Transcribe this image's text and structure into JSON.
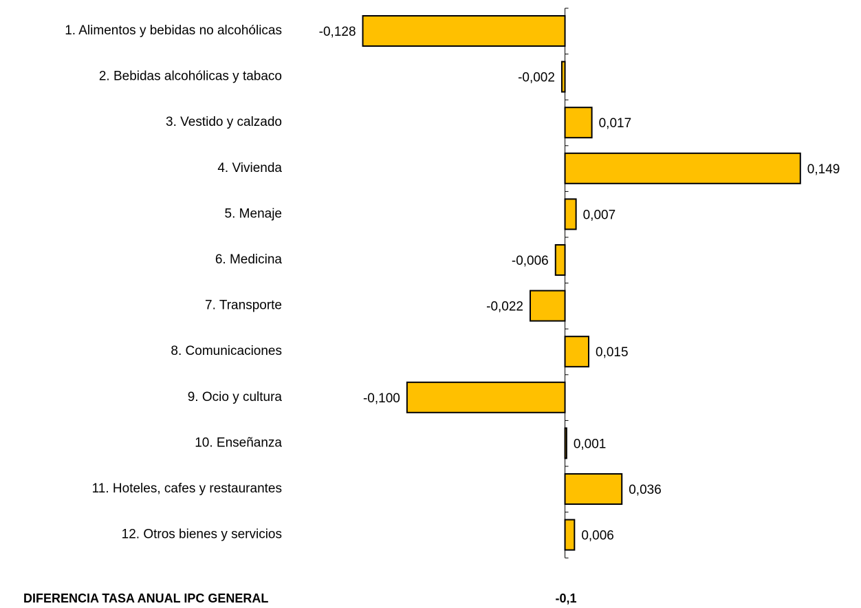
{
  "chart_data": {
    "type": "bar",
    "orientation": "horizontal",
    "categories": [
      "1. Alimentos y bebidas no alcohólicas",
      "2. Bebidas alcohólicas y tabaco",
      "3. Vestido y calzado",
      "4. Vivienda",
      "5. Menaje",
      "6. Medicina",
      "7. Transporte",
      "8. Comunicaciones",
      "9. Ocio y cultura",
      "10. Enseñanza",
      "11. Hoteles, cafes y restaurantes",
      "12. Otros bienes y servicios"
    ],
    "values": [
      -0.128,
      -0.002,
      0.017,
      0.149,
      0.007,
      -0.006,
      -0.022,
      0.015,
      -0.1,
      0.001,
      0.036,
      0.006
    ],
    "value_labels": [
      "-0,128",
      "-0,002",
      "0,017",
      "0,149",
      "0,007",
      "-0,006",
      "-0,022",
      "0,015",
      "-0,100",
      "0,001",
      "0,036",
      "0,006"
    ],
    "color": "#ffc000",
    "xlim": [
      -0.15,
      0.18
    ],
    "summary_label": "DIFERENCIA TASA ANUAL IPC GENERAL",
    "summary_value": "-0,1"
  }
}
